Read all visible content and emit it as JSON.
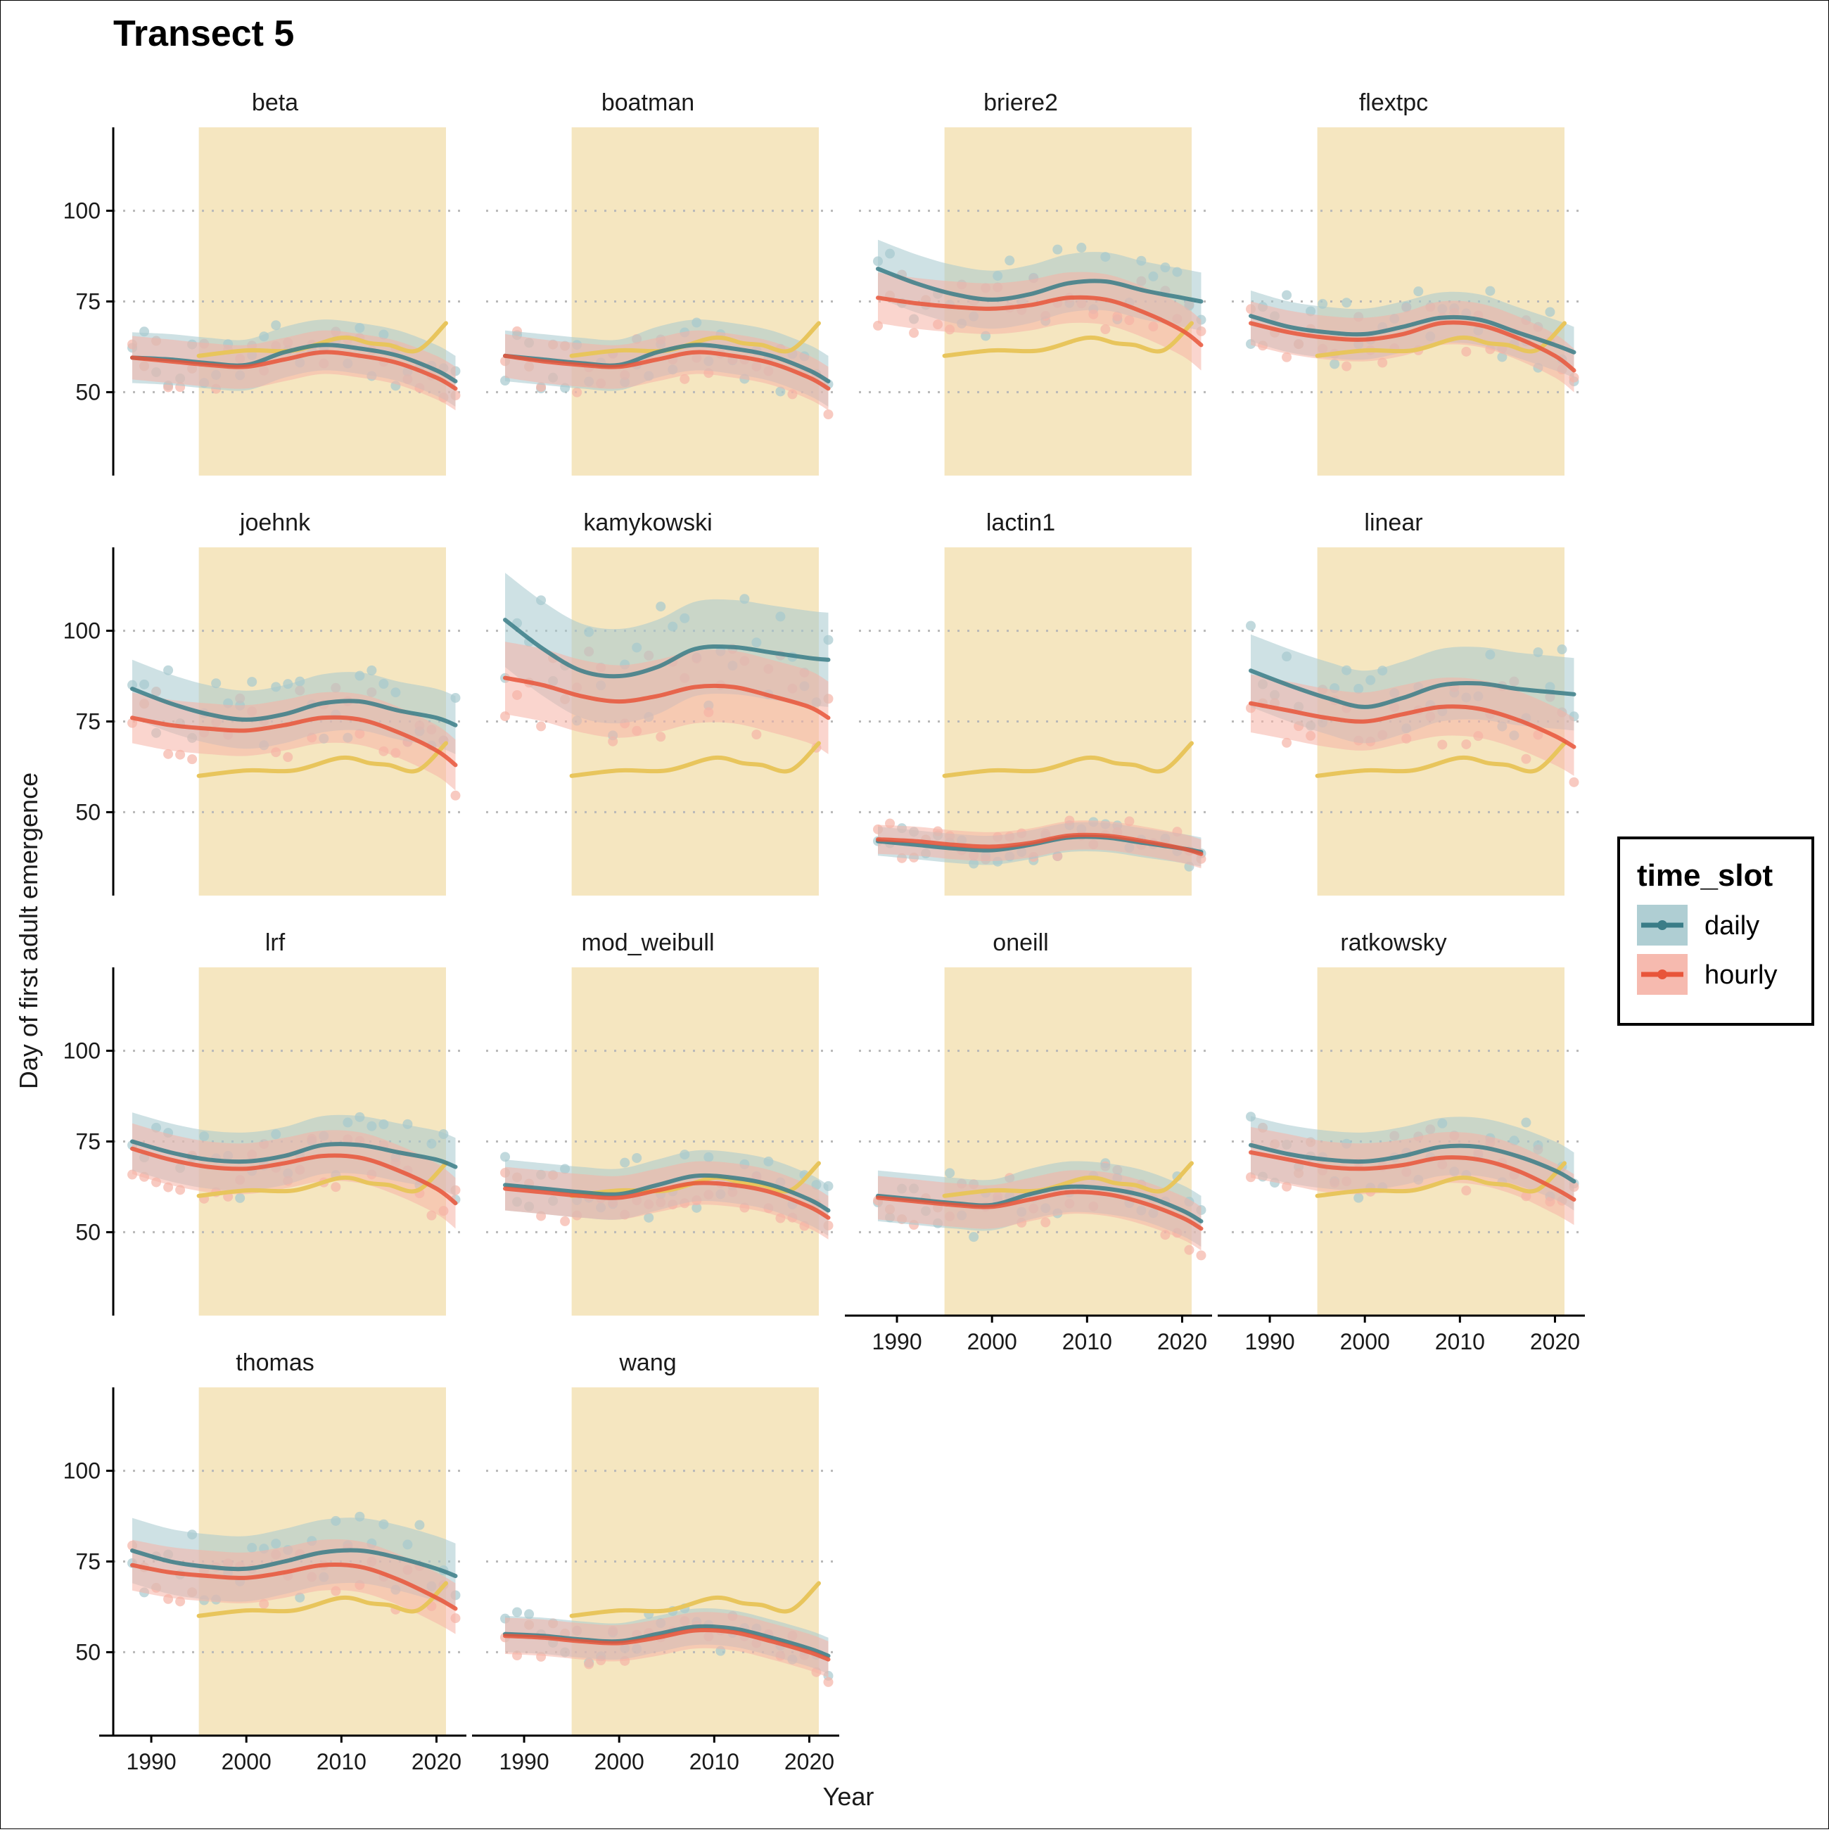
{
  "chart_data": {
    "type": "line",
    "title": "Transect 5",
    "xlabel": "Year",
    "ylabel": "Day of first adult emergence",
    "xlim": [
      1986,
      2023
    ],
    "ylim": [
      27,
      123
    ],
    "x_ticks": [
      1990,
      2000,
      2010,
      2020
    ],
    "y_ticks": [
      50,
      75,
      100
    ],
    "grid": "dotted horizontal at 50, 75, 100",
    "shaded_period": [
      1995,
      2021
    ],
    "legend": {
      "title": "time_slot",
      "position": "right",
      "entries": [
        {
          "name": "daily",
          "color": "#3A7C87",
          "fill": "#A6C9CE"
        },
        {
          "name": "hourly",
          "color": "#E8553A",
          "fill": "#F5B3A6"
        }
      ]
    },
    "reference_series": {
      "color": "#E8C55C",
      "x": [
        1995,
        2000,
        2005,
        2010,
        2013,
        2015,
        2018,
        2021
      ],
      "y": [
        60,
        61.5,
        61.5,
        65,
        63.5,
        63,
        61.5,
        69
      ]
    },
    "panels": [
      {
        "name": "beta",
        "daily": {
          "x": [
            1988,
            1992,
            1996,
            2000,
            2004,
            2008,
            2012,
            2016,
            2020,
            2022
          ],
          "y": [
            59.5,
            59,
            58,
            57.5,
            61,
            63,
            62,
            60,
            56,
            53
          ],
          "band": 7
        },
        "hourly": {
          "x": [
            1988,
            1992,
            1996,
            2000,
            2004,
            2008,
            2012,
            2016,
            2020,
            2022
          ],
          "y": [
            59.5,
            58.5,
            57.5,
            57,
            59,
            61,
            60,
            58,
            54,
            51
          ],
          "band": 6
        }
      },
      {
        "name": "boatman",
        "daily": {
          "x": [
            1988,
            1992,
            1996,
            2000,
            2004,
            2008,
            2012,
            2016,
            2020,
            2022
          ],
          "y": [
            60,
            59,
            58,
            57.5,
            61,
            63,
            62,
            60,
            56,
            53
          ],
          "band": 7
        },
        "hourly": {
          "x": [
            1988,
            1992,
            1996,
            2000,
            2004,
            2008,
            2012,
            2016,
            2020,
            2022
          ],
          "y": [
            60,
            58.5,
            57.5,
            57,
            59,
            61,
            60,
            58,
            54,
            51
          ],
          "band": 6
        }
      },
      {
        "name": "briere2",
        "daily": {
          "x": [
            1988,
            1992,
            1996,
            2000,
            2004,
            2008,
            2012,
            2016,
            2020,
            2022
          ],
          "y": [
            84,
            80,
            77,
            75.5,
            77,
            80,
            80.5,
            78,
            76,
            75
          ],
          "band": 8
        },
        "hourly": {
          "x": [
            1988,
            1992,
            1996,
            2000,
            2004,
            2008,
            2012,
            2016,
            2020,
            2022
          ],
          "y": [
            76,
            74.5,
            73.5,
            73,
            74,
            76,
            75.5,
            72,
            67,
            63
          ],
          "band": 7
        }
      },
      {
        "name": "flextpc",
        "daily": {
          "x": [
            1988,
            1992,
            1996,
            2000,
            2004,
            2008,
            2012,
            2016,
            2020,
            2022
          ],
          "y": [
            71,
            68,
            66.5,
            66,
            68,
            70.5,
            70,
            66.5,
            63,
            61
          ],
          "band": 7
        },
        "hourly": {
          "x": [
            1988,
            1992,
            1996,
            2000,
            2004,
            2008,
            2012,
            2016,
            2020,
            2022
          ],
          "y": [
            69,
            66.5,
            65,
            64.5,
            66,
            69,
            68.5,
            65,
            60,
            56
          ],
          "band": 6
        }
      },
      {
        "name": "joehnk",
        "daily": {
          "x": [
            1988,
            1992,
            1996,
            2000,
            2004,
            2008,
            2012,
            2016,
            2020,
            2022
          ],
          "y": [
            84,
            80,
            77,
            75.5,
            77,
            80,
            80.5,
            78,
            76,
            74
          ],
          "band": 8
        },
        "hourly": {
          "x": [
            1988,
            1992,
            1996,
            2000,
            2004,
            2008,
            2012,
            2016,
            2020,
            2022
          ],
          "y": [
            76,
            74,
            73,
            72.5,
            74,
            76,
            75.5,
            72,
            67,
            63
          ],
          "band": 7
        }
      },
      {
        "name": "kamykowski",
        "daily": {
          "x": [
            1988,
            1992,
            1996,
            2000,
            2004,
            2008,
            2012,
            2016,
            2020,
            2022
          ],
          "y": [
            103,
            95,
            89,
            87.5,
            90,
            95,
            95.5,
            94,
            92.5,
            92
          ],
          "band": 13
        },
        "hourly": {
          "x": [
            1988,
            1992,
            1996,
            2000,
            2004,
            2008,
            2012,
            2016,
            2020,
            2022
          ],
          "y": [
            87,
            85,
            82,
            80.5,
            82,
            84.5,
            84.5,
            82,
            79,
            76
          ],
          "band": 10
        }
      },
      {
        "name": "lactin1",
        "daily": {
          "x": [
            1988,
            1992,
            1996,
            2000,
            2004,
            2008,
            2012,
            2016,
            2020,
            2022
          ],
          "y": [
            42,
            41,
            40,
            39.5,
            41,
            43,
            43,
            41.5,
            40,
            39
          ],
          "band": 4
        },
        "hourly": {
          "x": [
            1988,
            1992,
            1996,
            2000,
            2004,
            2008,
            2012,
            2016,
            2020,
            2022
          ],
          "y": [
            42.5,
            42,
            41,
            40.5,
            41.5,
            43.5,
            43.5,
            42,
            40,
            38.5
          ],
          "band": 4
        }
      },
      {
        "name": "linear",
        "daily": {
          "x": [
            1988,
            1992,
            1996,
            2000,
            2004,
            2008,
            2012,
            2016,
            2020,
            2022
          ],
          "y": [
            89,
            85,
            81.5,
            79,
            81.5,
            85,
            85.5,
            84,
            83,
            82.5
          ],
          "band": 10
        },
        "hourly": {
          "x": [
            1988,
            1992,
            1996,
            2000,
            2004,
            2008,
            2012,
            2016,
            2020,
            2022
          ],
          "y": [
            80,
            78,
            76,
            75,
            77,
            79,
            78.5,
            75.5,
            71,
            68
          ],
          "band": 8
        }
      },
      {
        "name": "lrf",
        "daily": {
          "x": [
            1988,
            1992,
            1996,
            2000,
            2004,
            2008,
            2012,
            2016,
            2020,
            2022
          ],
          "y": [
            75,
            72,
            70,
            69.5,
            71,
            74,
            74,
            72,
            70,
            68
          ],
          "band": 8
        },
        "hourly": {
          "x": [
            1988,
            1992,
            1996,
            2000,
            2004,
            2008,
            2012,
            2016,
            2020,
            2022
          ],
          "y": [
            73,
            70,
            68,
            67.5,
            69,
            71,
            70.5,
            67,
            62,
            58
          ],
          "band": 7
        }
      },
      {
        "name": "mod_weibull",
        "daily": {
          "x": [
            1988,
            1992,
            1996,
            2000,
            2004,
            2008,
            2012,
            2016,
            2020,
            2022
          ],
          "y": [
            63,
            62,
            61,
            60.5,
            63,
            65.5,
            65,
            63,
            59,
            56
          ],
          "band": 7
        },
        "hourly": {
          "x": [
            1988,
            1992,
            1996,
            2000,
            2004,
            2008,
            2012,
            2016,
            2020,
            2022
          ],
          "y": [
            62,
            61,
            60,
            59.5,
            61.5,
            63.5,
            63,
            61,
            57,
            54
          ],
          "band": 6
        }
      },
      {
        "name": "oneill",
        "daily": {
          "x": [
            1988,
            1992,
            1996,
            2000,
            2004,
            2008,
            2012,
            2016,
            2020,
            2022
          ],
          "y": [
            60,
            59,
            58,
            57.5,
            60.5,
            62.5,
            62,
            60,
            56,
            53
          ],
          "band": 7
        },
        "hourly": {
          "x": [
            1988,
            1992,
            1996,
            2000,
            2004,
            2008,
            2012,
            2016,
            2020,
            2022
          ],
          "y": [
            59.5,
            58.5,
            57.5,
            57,
            59,
            61,
            60.5,
            58,
            54,
            51
          ],
          "band": 6
        }
      },
      {
        "name": "ratkowsky",
        "daily": {
          "x": [
            1988,
            1992,
            1996,
            2000,
            2004,
            2008,
            2012,
            2016,
            2020,
            2022
          ],
          "y": [
            74,
            71.5,
            70,
            69.5,
            71,
            73.5,
            73.5,
            71,
            67,
            64
          ],
          "band": 8
        },
        "hourly": {
          "x": [
            1988,
            1992,
            1996,
            2000,
            2004,
            2008,
            2012,
            2016,
            2020,
            2022
          ],
          "y": [
            72,
            70,
            68,
            67.5,
            68.5,
            70.5,
            70,
            67,
            62,
            59
          ],
          "band": 7
        }
      },
      {
        "name": "thomas",
        "daily": {
          "x": [
            1988,
            1992,
            1996,
            2000,
            2004,
            2008,
            2012,
            2016,
            2020,
            2022
          ],
          "y": [
            78,
            75,
            73.5,
            73,
            75,
            77.5,
            78,
            76,
            73,
            71
          ],
          "band": 9
        },
        "hourly": {
          "x": [
            1988,
            1992,
            1996,
            2000,
            2004,
            2008,
            2012,
            2016,
            2020,
            2022
          ],
          "y": [
            74,
            72,
            71,
            70.5,
            72,
            74,
            73.5,
            70,
            65,
            62
          ],
          "band": 7
        }
      },
      {
        "name": "wang",
        "daily": {
          "x": [
            1988,
            1992,
            1996,
            2000,
            2004,
            2008,
            2012,
            2016,
            2020,
            2022
          ],
          "y": [
            55,
            54.5,
            53.5,
            53,
            55,
            57,
            56.5,
            54,
            51,
            49
          ],
          "band": 5
        },
        "hourly": {
          "x": [
            1988,
            1992,
            1996,
            2000,
            2004,
            2008,
            2012,
            2016,
            2020,
            2022
          ],
          "y": [
            54.5,
            54,
            53,
            52.5,
            54,
            56,
            55.5,
            53,
            50,
            48
          ],
          "band": 5
        }
      }
    ]
  }
}
